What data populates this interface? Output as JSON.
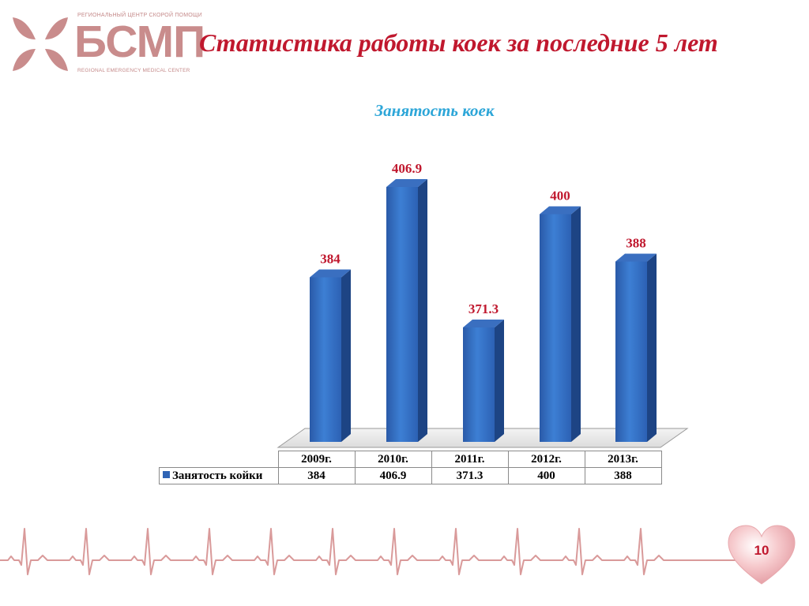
{
  "logo": {
    "top_text": "РЕГИОНАЛЬНЫЙ ЦЕНТР СКОРОЙ ПОМОЩИ",
    "main_text": "БСМП",
    "bottom_text": "REGIONAL EMERGENCY MEDICAL CENTER",
    "color": "#c98c8c"
  },
  "slide": {
    "title": "Статистика работы коек за последние 5 лет",
    "page_number": "10",
    "title_color": "#c0182e"
  },
  "chart_data": {
    "type": "bar",
    "title": "Занятость коек",
    "categories": [
      "2009г.",
      "2010г.",
      "2011г.",
      "2012г.",
      "2013г."
    ],
    "series": [
      {
        "name": "Занятость койки",
        "values": [
          384,
          406.9,
          371.3,
          400,
          388
        ],
        "color": "#2f64b5"
      }
    ],
    "value_labels": [
      "384",
      "406.9",
      "371.3",
      "400",
      "388"
    ],
    "data_label_color": "#c0182e",
    "style": "3d-column",
    "data_table": true,
    "legend": "data-table"
  },
  "table": {
    "row_label": "Занятость койки",
    "categories": [
      "2009г.",
      "2010г.",
      "2011г.",
      "2012г.",
      "2013г."
    ],
    "values": [
      "384",
      "406.9",
      "371.3",
      "400",
      "388"
    ]
  }
}
